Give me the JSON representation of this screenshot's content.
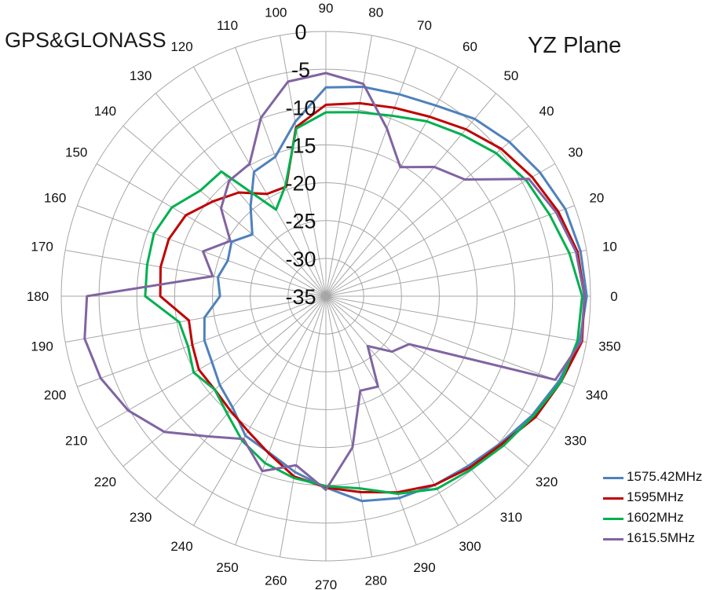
{
  "chart_data": {
    "type": "polar-line",
    "title": "GPS&GLONASS",
    "plane_label": "YZ Plane",
    "r_axis": {
      "min": -35,
      "max": 0,
      "ticks": [
        0,
        -5,
        -10,
        -15,
        -20,
        -25,
        -30,
        -35
      ]
    },
    "angle_ticks_deg": [
      0,
      10,
      20,
      30,
      40,
      50,
      60,
      70,
      80,
      90,
      100,
      110,
      120,
      130,
      140,
      150,
      160,
      170,
      180,
      190,
      200,
      210,
      220,
      230,
      240,
      250,
      260,
      270,
      280,
      290,
      300,
      310,
      320,
      330,
      340,
      350
    ],
    "grid": true,
    "legend_position": "bottom-right",
    "series": [
      {
        "name": "1575.42MHz",
        "color": "#4f81bd",
        "angles": [
          0,
          10,
          20,
          30,
          40,
          50,
          60,
          70,
          80,
          90,
          100,
          110,
          120,
          130,
          140,
          150,
          160,
          170,
          180,
          190,
          200,
          210,
          220,
          230,
          240,
          250,
          260,
          270,
          280,
          290,
          300,
          310,
          320,
          330,
          340,
          350
        ],
        "values": [
          -0.5,
          -0.8,
          -1.3,
          -2.3,
          -3.3,
          -4.4,
          -5.9,
          -6.6,
          -6.9,
          -7.4,
          -11.6,
          -15.4,
          -16.0,
          -19.5,
          -22.3,
          -20.6,
          -21.2,
          -20.5,
          -21.0,
          -18.7,
          -17.9,
          -17.6,
          -16.7,
          -15.8,
          -13.7,
          -13.0,
          -11.4,
          -9.7,
          -7.5,
          -6.6,
          -6.2,
          -5.7,
          -4.8,
          -3.5,
          -2.2,
          -0.9
        ]
      },
      {
        "name": "1595MHz",
        "color": "#c00000",
        "angles": [
          0,
          10,
          20,
          30,
          40,
          50,
          60,
          70,
          80,
          90,
          100,
          110,
          120,
          130,
          140,
          150,
          160,
          170,
          180,
          190,
          200,
          210,
          220,
          230,
          240,
          250,
          260,
          270,
          280,
          290,
          300,
          310,
          320,
          330,
          340,
          350
        ],
        "values": [
          -0.8,
          -1.2,
          -2.3,
          -3.5,
          -4.7,
          -6.2,
          -7.6,
          -8.5,
          -9.1,
          -9.7,
          -12.3,
          -19.6,
          -19.4,
          -17.1,
          -15.5,
          -13.6,
          -12.9,
          -12.8,
          -13.1,
          -16.6,
          -16.2,
          -15.6,
          -15.8,
          -15.3,
          -14.4,
          -12.9,
          -10.8,
          -9.7,
          -8.7,
          -7.4,
          -6.2,
          -5.4,
          -4.6,
          -3.0,
          -1.9,
          -0.6
        ]
      },
      {
        "name": "1602MHz",
        "color": "#00b050",
        "angles": [
          0,
          10,
          20,
          30,
          40,
          50,
          60,
          70,
          80,
          90,
          100,
          110,
          120,
          130,
          140,
          150,
          160,
          170,
          180,
          190,
          200,
          210,
          220,
          230,
          240,
          250,
          260,
          270,
          280,
          290,
          300,
          310,
          320,
          330,
          340,
          350
        ],
        "values": [
          -1.1,
          -2.3,
          -3.5,
          -4.4,
          -5.6,
          -7.1,
          -8.3,
          -9.6,
          -10.3,
          -10.7,
          -12.5,
          -19.4,
          -21.8,
          -13.5,
          -13.3,
          -11.5,
          -10.8,
          -11.0,
          -11.1,
          -15.3,
          -15.6,
          -14.8,
          -15.8,
          -14.7,
          -12.9,
          -11.5,
          -10.6,
          -9.9,
          -9.2,
          -7.2,
          -5.6,
          -5.1,
          -4.3,
          -3.3,
          -1.9,
          -1.2
        ]
      },
      {
        "name": "1615.5MHz",
        "color": "#8064a2",
        "angles": [
          0,
          10,
          20,
          30,
          40,
          50,
          60,
          70,
          80,
          90,
          100,
          110,
          120,
          130,
          140,
          150,
          160,
          170,
          180,
          190,
          200,
          210,
          220,
          230,
          240,
          250,
          260,
          270,
          280,
          290,
          300,
          310,
          320,
          330,
          340,
          350
        ],
        "values": [
          -0.8,
          -1.4,
          -2.6,
          -4.0,
          -11.0,
          -12.7,
          -15.3,
          -11.4,
          -6.5,
          -5.5,
          -6.2,
          -9.9,
          -14.8,
          -15.1,
          -16.9,
          -20.4,
          -17.7,
          -19.8,
          -3.4,
          -2.6,
          -3.3,
          -4.8,
          -7.1,
          -10.8,
          -13.2,
          -10.4,
          -12.3,
          -9.4,
          -14.7,
          -21.7,
          -21.2,
          -26.4,
          -23.6,
          -22.3,
          -2.7,
          -0.7
        ]
      }
    ]
  }
}
